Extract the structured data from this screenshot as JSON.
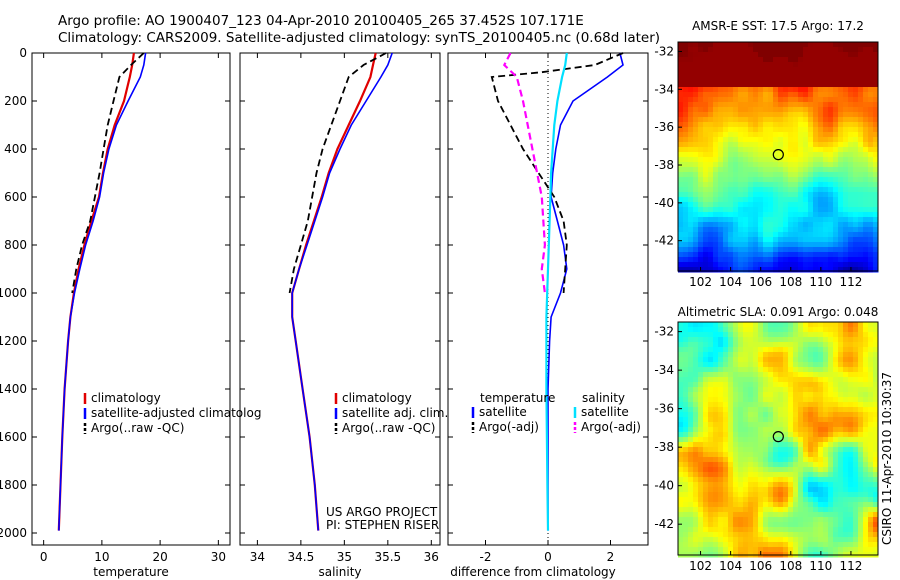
{
  "header": {
    "line1": "Argo profile: AO 1900407_123 04-Apr-2010 20100405_265 37.452S 107.171E",
    "line2": "Climatology: CARS2009. Satellite-adjusted climatology: synTS_20100405.nc (0.68d later)"
  },
  "side_label": "CSIRO 11-Apr-2010 10:30:37",
  "colors": {
    "climatology": "#e00000",
    "satellite": "#0000ff",
    "argo": "#000000",
    "satellite_sal": "#00e0ff",
    "argo_sal": "#ff00ff"
  },
  "chart_data": [
    {
      "type": "line",
      "xlabel": "temperature",
      "ylabel": "",
      "xlim": [
        -2,
        32
      ],
      "ylim": [
        2050,
        0
      ],
      "xticks": [
        0,
        10,
        20,
        30
      ],
      "yticks": [
        0,
        200,
        400,
        600,
        800,
        1000,
        1200,
        1400,
        1600,
        1800,
        2000
      ],
      "y_reversed": true,
      "legend": [
        "climatology",
        "satellite-adjusted climatolog",
        "Argo(..raw -QC)"
      ],
      "legend_position": "right-middle",
      "series": [
        {
          "name": "climatology",
          "x": [
            15.5,
            15.2,
            14.8,
            13.8,
            12.2,
            11.0,
            10.2,
            9.5,
            8.2,
            7.0,
            6.0,
            5.2,
            4.6,
            4.2,
            3.6,
            3.2,
            2.9,
            2.6
          ],
          "y": [
            0,
            50,
            100,
            200,
            300,
            400,
            500,
            600,
            700,
            800,
            900,
            1000,
            1100,
            1200,
            1400,
            1600,
            1800,
            1990
          ]
        },
        {
          "name": "satellite-adjusted climatology",
          "x": [
            17.5,
            17.2,
            16.6,
            14.5,
            12.5,
            11.2,
            10.3,
            9.6,
            8.5,
            7.2,
            6.2,
            5.3,
            4.6,
            4.2,
            3.6,
            3.2,
            2.9,
            2.6
          ],
          "y": [
            0,
            50,
            100,
            200,
            300,
            400,
            500,
            600,
            700,
            800,
            900,
            1000,
            1100,
            1200,
            1400,
            1600,
            1800,
            1990
          ]
        },
        {
          "name": "Argo(..raw -QC)",
          "x": [
            17.2,
            15.0,
            13.0,
            12.0,
            11.0,
            10.3,
            9.6,
            8.0,
            6.6,
            5.6,
            4.9
          ],
          "y": [
            0,
            50,
            100,
            200,
            300,
            400,
            500,
            700,
            800,
            900,
            1000
          ]
        }
      ]
    },
    {
      "type": "line",
      "xlabel": "salinity",
      "xlim": [
        33.8,
        36.1
      ],
      "ylim": [
        2050,
        0
      ],
      "xticks": [
        34,
        34.5,
        35,
        35.5,
        36
      ],
      "y_reversed": true,
      "legend": [
        "climatology",
        "satellite adj. clim.",
        "Argo(..raw -QC)"
      ],
      "legend_position": "right-middle",
      "annotation": [
        "US ARGO PROJECT",
        "PI: STEPHEN RISER"
      ],
      "series": [
        {
          "name": "climatology",
          "x": [
            35.36,
            35.33,
            35.3,
            35.18,
            35.05,
            34.92,
            34.82,
            34.74,
            34.65,
            34.56,
            34.48,
            34.4,
            34.4,
            34.44,
            34.52,
            34.6,
            34.66,
            34.7
          ],
          "y": [
            0,
            50,
            100,
            200,
            300,
            400,
            500,
            600,
            700,
            800,
            900,
            1000,
            1100,
            1200,
            1400,
            1600,
            1800,
            1990
          ]
        },
        {
          "name": "satellite adj. clim.",
          "x": [
            35.55,
            35.5,
            35.42,
            35.25,
            35.08,
            34.95,
            34.83,
            34.75,
            34.66,
            34.57,
            34.48,
            34.4,
            34.4,
            34.44,
            34.52,
            34.6,
            34.66,
            34.7
          ],
          "y": [
            0,
            50,
            100,
            200,
            300,
            400,
            500,
            600,
            700,
            800,
            900,
            1000,
            1100,
            1200,
            1400,
            1600,
            1800,
            1990
          ]
        },
        {
          "name": "Argo(..raw -QC)",
          "x": [
            35.48,
            35.22,
            35.05,
            34.95,
            34.85,
            34.75,
            34.68,
            34.58,
            34.5,
            34.42,
            34.37
          ],
          "y": [
            0,
            50,
            100,
            200,
            300,
            400,
            500,
            700,
            800,
            900,
            1000
          ]
        }
      ]
    },
    {
      "type": "line",
      "xlabel": "difference from climatology",
      "xlim": [
        -3.2,
        3.2
      ],
      "ylim": [
        2050,
        0
      ],
      "xticks": [
        -2,
        0,
        2
      ],
      "y_reversed": true,
      "legend": [
        "temperature",
        "satellite",
        "Argo(-adj)",
        "salinity",
        "satellite",
        "Argo(-adj)"
      ],
      "legend_position": "bottom-middle",
      "series": [
        {
          "name": "temperature satellite",
          "x": [
            2.3,
            2.4,
            1.9,
            0.8,
            0.4,
            0.25,
            0.15,
            0.1,
            0.3,
            0.5,
            0.6,
            0.4,
            0.1,
            0.05,
            0.0,
            0.0,
            0.0
          ],
          "y": [
            0,
            50,
            100,
            200,
            300,
            400,
            500,
            600,
            700,
            800,
            900,
            1000,
            1100,
            1200,
            1400,
            1800,
            1990
          ]
        },
        {
          "name": "temperature Argo(-adj)",
          "x": [
            2.4,
            1.5,
            -0.2,
            -1.8,
            -1.6,
            -1.2,
            -0.8,
            -0.3,
            0.2,
            0.5,
            0.6,
            0.5
          ],
          "y": [
            0,
            50,
            80,
            100,
            200,
            300,
            400,
            500,
            600,
            700,
            800,
            1000
          ]
        },
        {
          "name": "salinity satellite",
          "x": [
            0.6,
            0.55,
            0.45,
            0.3,
            0.2,
            0.15,
            0.1,
            0.05,
            0.0,
            -0.05,
            -0.05,
            -0.02,
            0.0
          ],
          "y": [
            0,
            50,
            100,
            200,
            300,
            400,
            500,
            700,
            900,
            1100,
            1400,
            1800,
            1990
          ]
        },
        {
          "name": "salinity Argo(-adj)",
          "x": [
            -1.2,
            -1.4,
            -1.0,
            -0.8,
            -0.5,
            -0.2,
            -0.1,
            -0.2,
            -0.1
          ],
          "y": [
            0,
            50,
            100,
            200,
            400,
            600,
            800,
            900,
            1000
          ]
        }
      ]
    },
    {
      "type": "heatmap",
      "title": "AMSR-E SST: 17.5 Argo: 17.2",
      "xlim": [
        100.5,
        113.8
      ],
      "ylim": [
        -43.6,
        -31.5
      ],
      "xticks": [
        102,
        104,
        106,
        108,
        110,
        112
      ],
      "yticks": [
        -32,
        -34,
        -36,
        -38,
        -40,
        -42
      ],
      "marker": {
        "lon": 107.171,
        "lat": -37.452
      }
    },
    {
      "type": "heatmap",
      "title": "Altimetric SLA: 0.091 Argo: 0.048",
      "xlim": [
        100.5,
        113.8
      ],
      "ylim": [
        -43.6,
        -31.5
      ],
      "xticks": [
        102,
        104,
        106,
        108,
        110,
        112
      ],
      "yticks": [
        -32,
        -34,
        -36,
        -38,
        -40,
        -42
      ],
      "marker": {
        "lon": 107.171,
        "lat": -37.452
      }
    }
  ]
}
